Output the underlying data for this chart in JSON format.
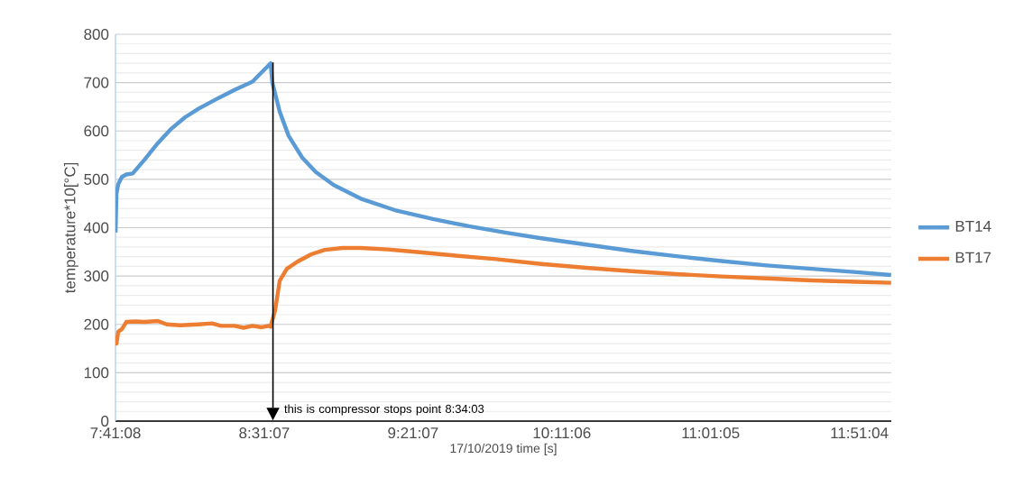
{
  "chart_data": {
    "type": "line",
    "xlabel": "17/10/2019 time [s]",
    "ylabel": "temperature*10[°C]",
    "xlim": [
      7.6855,
      12.03
    ],
    "ylim": [
      0,
      800
    ],
    "xticks": [
      {
        "value": 7.685556,
        "label": "7:41:08"
      },
      {
        "value": 8.518611,
        "label": "8:31:07"
      },
      {
        "value": 9.351944,
        "label": "9:21:07"
      },
      {
        "value": 10.185,
        "label": "10:11:06"
      },
      {
        "value": 11.018056,
        "label": "11:01:05"
      },
      {
        "value": 11.851111,
        "label": "11:51:04"
      }
    ],
    "yticks": [
      0,
      100,
      200,
      300,
      400,
      500,
      600,
      700,
      800
    ],
    "grid": "y",
    "legend": "right",
    "marker": "none",
    "line_style": "solid",
    "ref_lines": [
      {
        "axis": "x",
        "value": 8.5675,
        "color": "#000000"
      }
    ],
    "annotations": [
      "this is compressor stops point 8:34:03"
    ],
    "series": [
      {
        "name": "BT14",
        "color": "#5b9bd5",
        "x": [
          7.686,
          7.691,
          7.701,
          7.721,
          7.746,
          7.782,
          7.847,
          7.923,
          7.999,
          8.074,
          8.15,
          8.251,
          8.352,
          8.453,
          8.554,
          8.564,
          8.605,
          8.655,
          8.731,
          8.807,
          8.908,
          9.059,
          9.261,
          9.463,
          9.665,
          9.867,
          10.07,
          10.322,
          10.575,
          10.827,
          11.08,
          11.332,
          11.585,
          11.837,
          12.029
        ],
        "values": [
          390,
          470,
          490,
          505,
          510,
          512,
          540,
          575,
          605,
          628,
          646,
          666,
          685,
          702,
          740,
          700,
          640,
          590,
          545,
          515,
          488,
          460,
          435,
          418,
          403,
          390,
          378,
          365,
          352,
          341,
          331,
          322,
          315,
          308,
          302
        ]
      },
      {
        "name": "BT17",
        "color": "#ed7d31",
        "x": [
          7.686,
          7.691,
          7.701,
          7.721,
          7.746,
          7.797,
          7.847,
          7.923,
          7.973,
          8.049,
          8.15,
          8.226,
          8.276,
          8.352,
          8.403,
          8.453,
          8.504,
          8.544,
          8.554,
          8.58,
          8.605,
          8.645,
          8.706,
          8.782,
          8.857,
          8.958,
          9.059,
          9.211,
          9.362,
          9.564,
          9.817,
          10.07,
          10.322,
          10.575,
          10.827,
          11.08,
          11.332,
          11.585,
          11.837,
          12.029
        ],
        "values": [
          175,
          160,
          185,
          190,
          205,
          206,
          205,
          207,
          200,
          198,
          200,
          202,
          197,
          197,
          193,
          197,
          194,
          197,
          195,
          230,
          290,
          315,
          330,
          345,
          354,
          358,
          358,
          355,
          350,
          343,
          335,
          325,
          317,
          310,
          304,
          299,
          295,
          291,
          288,
          286
        ]
      }
    ]
  }
}
